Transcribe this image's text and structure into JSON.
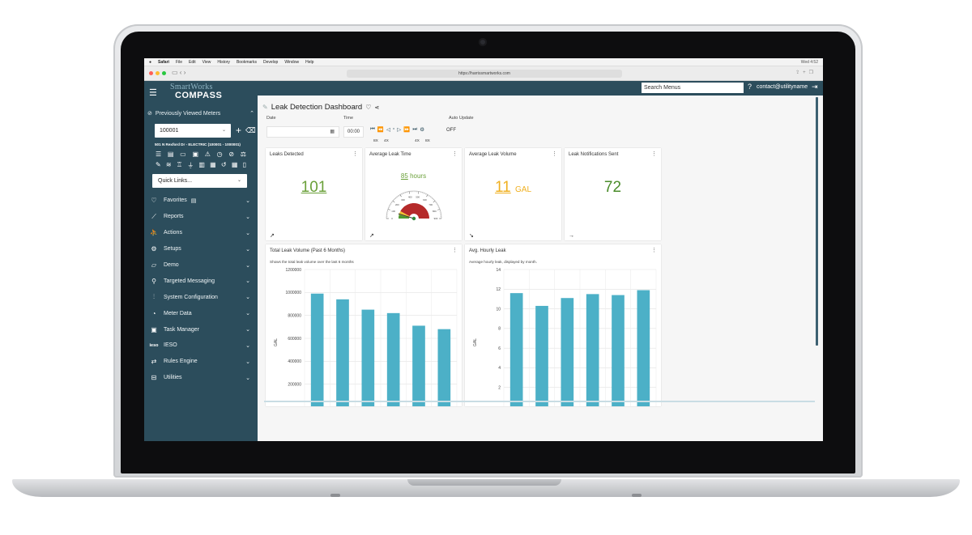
{
  "menubar": {
    "items": [
      "",
      "Safari",
      "File",
      "Edit",
      "View",
      "History",
      "Bookmarks",
      "Develop",
      "Window",
      "Help"
    ],
    "clock": "Wed 4:52"
  },
  "browser": {
    "url": "https://harrissmartworks.com",
    "nav_back": "‹",
    "nav_forward": "›"
  },
  "app": {
    "logo_top": "SmartWorks",
    "logo_bottom": "COMPASS",
    "search_placeholder": "Search Menus",
    "user": "contact@utilityname"
  },
  "sidebar": {
    "previously_viewed_label": "Previously Viewed Meters",
    "meter_value": "100001",
    "address": "501 N Rexford Dr - ELECTRIC (100001 - 1000001)",
    "quick_links": "Quick Links...",
    "menu": [
      {
        "label": "Favorites",
        "icon": "heart-icon"
      },
      {
        "label": "Reports",
        "icon": "line-chart-icon"
      },
      {
        "label": "Actions",
        "icon": "running-icon"
      },
      {
        "label": "Setups",
        "icon": "gear-icon"
      },
      {
        "label": "Demo",
        "icon": "folder-icon"
      },
      {
        "label": "Targeted Messaging",
        "icon": "search-people-icon"
      },
      {
        "label": "System Configuration",
        "icon": "sliders-icon"
      },
      {
        "label": "Meter Data",
        "icon": "gauge-icon"
      },
      {
        "label": "Task Manager",
        "icon": "clipboard-icon"
      },
      {
        "label": "IESO",
        "icon": "ieso-icon",
        "icon_text": "ieso"
      },
      {
        "label": "Rules Engine",
        "icon": "flow-icon"
      },
      {
        "label": "Utilities",
        "icon": "toolbox-icon"
      }
    ]
  },
  "dashboard": {
    "title": "Leak Detection Dashboard",
    "date_label": "Date",
    "time_label": "Time",
    "time_value": "00:00",
    "auto_update_label": "Auto Update",
    "auto_update_value": "OFF",
    "speed_left_1": "8X",
    "speed_left_2": "4X",
    "speed_right_1": "4X",
    "speed_right_2": "8X"
  },
  "kpis": [
    {
      "title": "Leaks Detected",
      "value": "101",
      "color": "#6aa039",
      "trend": "↗"
    },
    {
      "title": "Average Leak Time",
      "value": "85",
      "unit": "hours",
      "color": "#6aa039",
      "trend": "↗"
    },
    {
      "title": "Average Leak Volume",
      "value": "11",
      "unit": "GAL",
      "color": "#f0b020",
      "trend": "↘"
    },
    {
      "title": "Leak Notifications Sent",
      "value": "72",
      "color": "#4a8c2a",
      "trend": "→"
    }
  ],
  "gauge": {
    "ticks": [
      "0",
      "100",
      "200",
      "300",
      "400",
      "500",
      "600",
      "700",
      "800",
      "900"
    ],
    "value": 85,
    "max": 900
  },
  "charts": {
    "volume_title": "Total Leak Volume (Past 6 Months)",
    "volume_subtitle": "Shows the total leak volume over the last 6 months",
    "hourly_title": "Avg. Hourly Leak",
    "hourly_subtitle": "Average hourly leak, displayed by month."
  },
  "chart_data": [
    {
      "type": "bar",
      "title": "Total Leak Volume (Past 6 Months)",
      "subtitle": "Shows the total leak volume over the last 6 months",
      "ylabel": "GAL",
      "ylim": [
        0,
        1200000
      ],
      "yticks": [
        "1200000",
        "1000000",
        "800000",
        "600000",
        "400000",
        "200000"
      ],
      "values": [
        990000,
        940000,
        850000,
        820000,
        710000,
        680000
      ],
      "color": "#4cb0c7",
      "grid": true
    },
    {
      "type": "bar",
      "title": "Avg. Hourly Leak",
      "subtitle": "Average hourly leak, displayed by month.",
      "ylabel": "GAL",
      "ylim": [
        0,
        14
      ],
      "yticks": [
        "14",
        "12",
        "10",
        "8",
        "6",
        "4",
        "2"
      ],
      "values": [
        11.6,
        10.3,
        11.1,
        11.5,
        11.4,
        11.9
      ],
      "color": "#4cb0c7",
      "grid": true
    }
  ]
}
